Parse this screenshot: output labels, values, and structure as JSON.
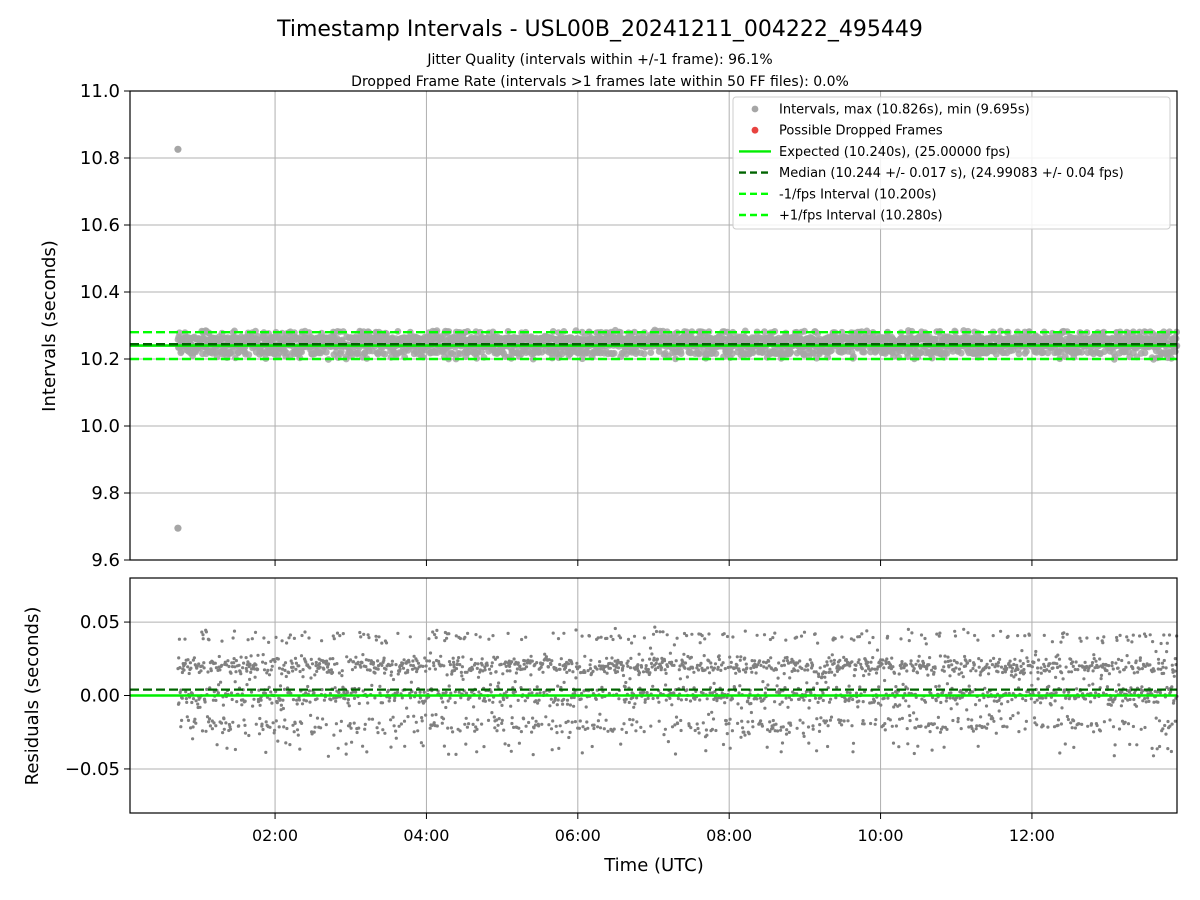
{
  "colors": {
    "scatter": "#808080",
    "scatter_light": "#a6a6a6",
    "dropped": "#e8423f",
    "expected": "#00ee00",
    "median": "#006400",
    "bounds": "#00ff00",
    "grid": "#b0b0b0"
  },
  "chart_data": [
    {
      "type": "scatter",
      "title": "Timestamp Intervals - USL00B_20241211_004222_495449",
      "subtitle_lines": [
        "Jitter Quality (intervals within +/-1 frame): 96.1%",
        "Dropped Frame Rate (intervals >1 frames late within 50 FF files): 0.0%"
      ],
      "xlabel": "",
      "ylabel": "Intervals (seconds)",
      "xlim": [
        "00:05",
        "13:55"
      ],
      "ylim": [
        9.6,
        11.0
      ],
      "yticks": [
        "9.6",
        "9.8",
        "10.0",
        "10.2",
        "10.4",
        "10.6",
        "10.8",
        "11.0"
      ],
      "grid": true,
      "legend_position": "top-right",
      "legend": [
        {
          "label": "Intervals, max (10.826s), min (9.695s)",
          "marker": "dot",
          "color": "#a6a6a6"
        },
        {
          "label": "Possible Dropped Frames",
          "marker": "dot",
          "color": "#e8423f"
        },
        {
          "label": "Expected (10.240s), (25.00000 fps)",
          "marker": "solid",
          "color": "#00ee00"
        },
        {
          "label": "Median (10.244 +/- 0.017 s), (24.99083 +/- 0.04 fps)",
          "marker": "dashed",
          "color": "#006400"
        },
        {
          "label": "-1/fps Interval (10.200s)",
          "marker": "dashed",
          "color": "#00ff00"
        },
        {
          "label": "+1/fps Interval (10.280s)",
          "marker": "dashed",
          "color": "#00ff00"
        }
      ],
      "reference_lines": {
        "expected": 10.24,
        "median": 10.244,
        "lower": 10.2,
        "upper": 10.28
      },
      "intervals": {
        "start": "00:43",
        "end": "13:55",
        "max": 10.826,
        "min": 9.695,
        "max_time": "00:43",
        "min_time": "00:43"
      }
    },
    {
      "type": "scatter",
      "xlabel": "Time (UTC)",
      "ylabel": "Residuals (seconds)",
      "xlim": [
        "00:05",
        "13:55"
      ],
      "ylim": [
        -0.08,
        0.08
      ],
      "xticks": [
        "02:00",
        "04:00",
        "06:00",
        "08:00",
        "10:00",
        "12:00"
      ],
      "yticks": [
        "−0.05",
        "0.00",
        "0.05"
      ],
      "grid": true,
      "reference_lines": {
        "zero": 0.0,
        "median": 0.004
      }
    }
  ]
}
